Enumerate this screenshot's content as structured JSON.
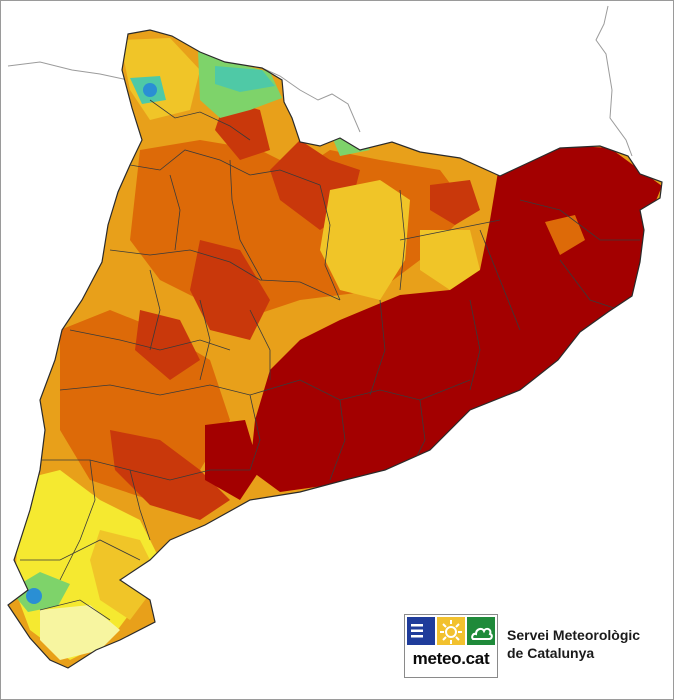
{
  "map": {
    "region": "Catalunya",
    "legend_colors": {
      "extreme": "#a30000",
      "very_high": "#c9380b",
      "high": "#dd6a08",
      "moderate": "#e8a01a",
      "low": "#f0c528",
      "very_low": "#f5e930",
      "minimal": "#f7f5a0",
      "green": "#7ed36a",
      "teal": "#4fc9a6",
      "blue": "#2a8fd4",
      "background": "#ffffff",
      "boundaries": "#303030"
    }
  },
  "logo": {
    "text": "meteo.cat",
    "tiles": [
      {
        "name": "blue-tile",
        "color": "#1f3c9b",
        "icon": "waves-icon"
      },
      {
        "name": "yellow-tile",
        "color": "#f2c12e",
        "icon": "sun-icon"
      },
      {
        "name": "green-tile",
        "color": "#1f8a3a",
        "icon": "cloud-icon"
      }
    ]
  },
  "agency": {
    "line1": "Servei Meteorològic",
    "line2": "de Catalunya"
  }
}
